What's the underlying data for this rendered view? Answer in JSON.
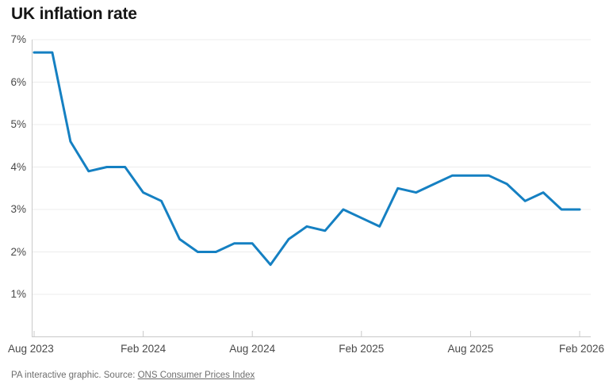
{
  "header": {
    "title": "UK inflation rate"
  },
  "footer": {
    "credit": "PA interactive graphic. Source: ",
    "source_link": "ONS Consumer Prices Index"
  },
  "chart_data": {
    "type": "line",
    "title": "UK inflation rate",
    "x": [
      "Aug 2023",
      "Sep 2023",
      "Oct 2023",
      "Nov 2023",
      "Dec 2023",
      "Jan 2024",
      "Feb 2024",
      "Mar 2024",
      "Apr 2024",
      "May 2024",
      "Jun 2024",
      "Jul 2024",
      "Aug 2024",
      "Sep 2024",
      "Oct 2024",
      "Nov 2024",
      "Dec 2024",
      "Jan 2025",
      "Feb 2025",
      "Mar 2025",
      "Apr 2025",
      "May 2025",
      "Jun 2025",
      "Jul 2025",
      "Aug 2025",
      "Sep 2025",
      "Oct 2025",
      "Nov 2025",
      "Dec 2025",
      "Jan 2026",
      "Feb 2026"
    ],
    "values": [
      6.7,
      6.7,
      4.6,
      3.9,
      4.0,
      4.0,
      3.4,
      3.2,
      2.3,
      2.0,
      2.0,
      2.2,
      2.2,
      1.7,
      2.3,
      2.6,
      2.5,
      3.0,
      2.8,
      2.6,
      3.5,
      3.4,
      3.6,
      3.8,
      3.8,
      3.8,
      3.6,
      3.2,
      3.4,
      3.0,
      3.0
    ],
    "unit": "%",
    "x_tick_labels": [
      "Aug 2023",
      "Feb 2024",
      "Aug 2024",
      "Feb 2025",
      "Aug 2025",
      "Feb 2026"
    ],
    "y_tick_labels": [
      "1%",
      "2%",
      "3%",
      "4%",
      "5%",
      "6%",
      "7%"
    ],
    "ylim": [
      0,
      7
    ],
    "grid": true,
    "legend": false,
    "colors": {
      "line": "#1580c2",
      "grid": "#ececec",
      "axis": "#c9c9c9",
      "label": "#4a4a4a",
      "title": "#161616",
      "footer": "#6e6e6e"
    }
  }
}
